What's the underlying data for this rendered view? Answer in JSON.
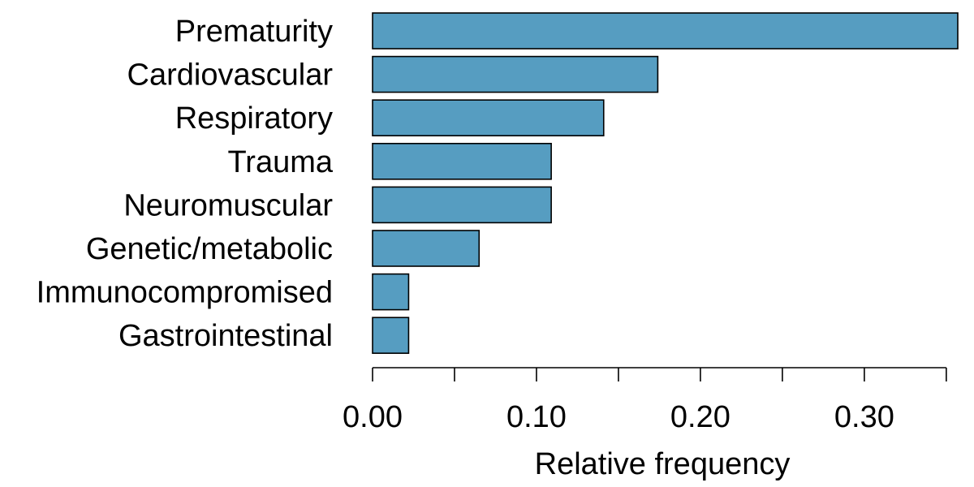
{
  "chart_data": {
    "type": "bar",
    "orientation": "horizontal",
    "title": "",
    "xlabel": "Relative frequency",
    "ylabel": "",
    "xlim": [
      0,
      0.357
    ],
    "categories": [
      "Prematurity",
      "Cardiovascular",
      "Respiratory",
      "Trauma",
      "Neuromuscular",
      "Genetic/metabolic",
      "Immunocompromised",
      "Gastrointestinal"
    ],
    "values": [
      0.357,
      0.174,
      0.141,
      0.109,
      0.109,
      0.065,
      0.022,
      0.022
    ],
    "x_ticks": [
      0,
      0.05,
      0.1,
      0.15,
      0.2,
      0.25,
      0.3,
      0.35
    ],
    "x_tick_labels": [
      {
        "value": 0.0,
        "text": "0.00"
      },
      {
        "value": 0.1,
        "text": "0.10"
      },
      {
        "value": 0.2,
        "text": "0.20"
      },
      {
        "value": 0.3,
        "text": "0.30"
      }
    ],
    "grid": false,
    "legend": "none",
    "bar_color": "#569dc1",
    "bar_edge_color": "#000000"
  }
}
